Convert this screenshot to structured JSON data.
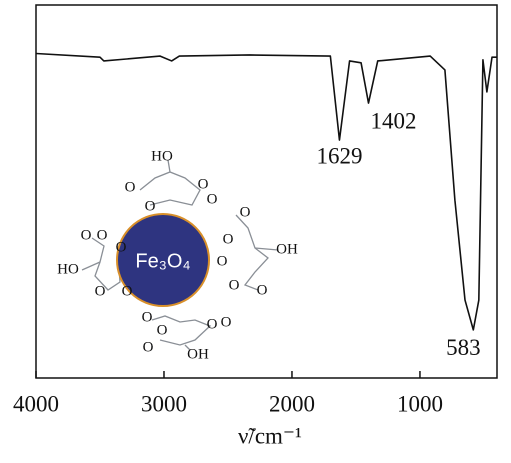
{
  "chart_data": {
    "type": "line",
    "x_label": "ν̃/cm⁻¹",
    "x": [
      4000,
      3500,
      3470,
      3030,
      2940,
      2880,
      2330,
      1700,
      1629,
      1550,
      1460,
      1402,
      1330,
      920,
      805,
      727,
      648,
      583,
      540,
      508,
      477,
      437,
      398
    ],
    "series": [
      {
        "color": "#111111",
        "values": [
          87,
          86,
          85,
          86.3,
          85,
          86.3,
          86.6,
          86.3,
          63.8,
          85,
          84.5,
          73.7,
          85,
          86.3,
          82.6,
          47.7,
          20.9,
          12.9,
          20.9,
          85.3,
          76.7,
          86,
          86
        ]
      }
    ],
    "xlim": [
      4000,
      398
    ],
    "ylim": [
      0,
      100
    ],
    "xticks": [
      4000,
      3000,
      2000,
      1000
    ],
    "peaks": [
      1629,
      1402,
      583
    ],
    "inset": {
      "core": "Fe₃O₄",
      "labels": [
        "HO",
        "O",
        "O",
        "O",
        "O",
        "OH",
        "O",
        "O",
        "O",
        "O",
        "O",
        "HO",
        "O",
        "O",
        "O",
        "O",
        "O",
        "OH",
        "O",
        "O",
        "O",
        "O",
        "O"
      ]
    }
  }
}
